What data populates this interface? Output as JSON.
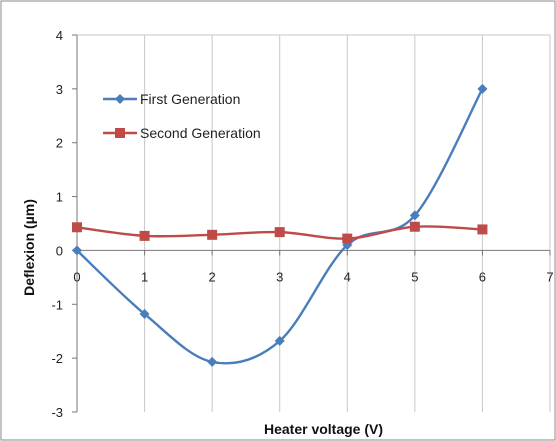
{
  "chart_data": {
    "type": "line",
    "title": "",
    "xlabel": "Heater voltage (V)",
    "ylabel": "Deflexion (µm)",
    "xlim": [
      0,
      7
    ],
    "ylim": [
      -3,
      4
    ],
    "x_ticks": [
      "0",
      "1",
      "2",
      "3",
      "4",
      "5",
      "6",
      "7"
    ],
    "y_ticks": [
      "-3",
      "-2",
      "-1",
      "0",
      "1",
      "2",
      "3",
      "4"
    ],
    "grid": "vertical",
    "legend": "upper-left",
    "series": [
      {
        "name": "First Generation",
        "color": "#4a7ebb",
        "marker": "diamond",
        "smooth": true,
        "x": [
          0,
          1,
          2,
          3,
          4,
          5,
          6
        ],
        "y": [
          0,
          -1.18,
          -2.07,
          -1.68,
          0.1,
          0.65,
          3.0
        ]
      },
      {
        "name": "Second Generation",
        "color": "#be4b48",
        "marker": "square",
        "smooth": true,
        "x": [
          0,
          1,
          2,
          3,
          4,
          5,
          6
        ],
        "y": [
          0.43,
          0.27,
          0.29,
          0.34,
          0.22,
          0.44,
          0.39
        ]
      }
    ]
  }
}
